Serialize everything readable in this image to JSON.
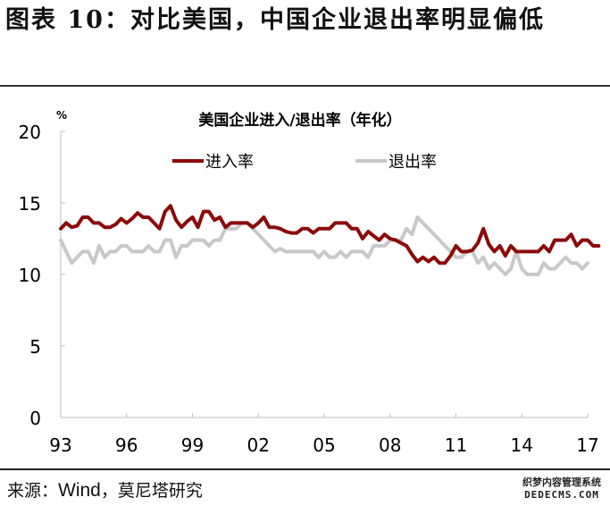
{
  "figure": {
    "title": "图表 10：对比美国，中国企业退出率明显偏低",
    "source_prefix": "来源：",
    "source_wind": "Wind",
    "source_suffix": "，莫尼塔研究"
  },
  "watermark": {
    "line1": "织梦内容管理系统",
    "line2": "DEDECMS.COM"
  },
  "chart_data": {
    "type": "line",
    "title": "美国企业进入/退出率（年化）",
    "xlabel": "",
    "ylabel": "%",
    "ylim": [
      0,
      20
    ],
    "yticks": [
      0,
      5,
      10,
      15,
      20
    ],
    "xticks": [
      "93",
      "96",
      "99",
      "02",
      "05",
      "08",
      "11",
      "14",
      "17"
    ],
    "xlim": [
      1993,
      2017
    ],
    "grid": false,
    "legend_position": "top-center",
    "frequency": "quarterly",
    "x_start": "1993Q1",
    "series": [
      {
        "name": "进入率",
        "color": "#8B0A0A",
        "values": [
          13.2,
          13.6,
          13.3,
          13.4,
          14.0,
          14.0,
          13.6,
          13.6,
          13.3,
          13.3,
          13.5,
          13.9,
          13.6,
          13.9,
          14.3,
          14.0,
          14.0,
          13.6,
          13.2,
          14.4,
          14.8,
          13.8,
          13.3,
          13.7,
          14.0,
          13.3,
          14.4,
          14.4,
          13.8,
          14.0,
          13.3,
          13.6,
          13.6,
          13.6,
          13.6,
          13.3,
          13.6,
          14.0,
          13.3,
          13.3,
          13.2,
          13.0,
          12.9,
          12.9,
          13.2,
          13.2,
          12.9,
          13.2,
          13.2,
          13.2,
          13.6,
          13.6,
          13.6,
          13.2,
          13.2,
          12.5,
          13.0,
          12.7,
          12.4,
          12.8,
          12.5,
          12.4,
          12.2,
          12.0,
          11.4,
          10.9,
          11.2,
          10.9,
          11.2,
          10.8,
          10.8,
          11.3,
          12.0,
          11.6,
          11.6,
          11.7,
          12.2,
          13.2,
          12.1,
          11.6,
          12.0,
          11.3,
          12.0,
          11.6,
          11.6,
          11.6,
          11.6,
          11.6,
          12.0,
          11.6,
          12.4,
          12.4,
          12.4,
          12.8,
          12.0,
          12.4,
          12.4,
          12.0,
          12.0
        ],
        "note": "values are estimated from pixel positions"
      },
      {
        "name": "退出率",
        "color": "#C8C8C8",
        "values": [
          12.4,
          11.6,
          10.8,
          11.2,
          11.6,
          11.6,
          10.8,
          12.0,
          11.2,
          11.6,
          11.6,
          12.0,
          12.0,
          11.6,
          11.6,
          11.6,
          12.0,
          11.6,
          11.6,
          12.4,
          12.4,
          11.2,
          12.0,
          12.0,
          12.4,
          12.4,
          12.4,
          12.0,
          12.4,
          12.4,
          13.2,
          13.2,
          13.2,
          13.6,
          13.6,
          13.2,
          12.8,
          12.4,
          12.0,
          11.6,
          11.8,
          11.6,
          11.6,
          11.6,
          11.6,
          11.6,
          11.6,
          11.2,
          11.6,
          11.2,
          11.2,
          11.6,
          11.2,
          11.6,
          11.6,
          11.6,
          11.2,
          12.0,
          12.0,
          12.0,
          12.4,
          12.4,
          12.4,
          13.2,
          12.8,
          14.0,
          13.6,
          13.2,
          12.8,
          12.4,
          12.0,
          11.6,
          11.2,
          11.2,
          11.6,
          11.6,
          10.8,
          11.2,
          10.4,
          10.8,
          10.4,
          10.0,
          10.4,
          11.6,
          10.4,
          10.0,
          10.0,
          10.0,
          10.8,
          10.4,
          10.4,
          10.8,
          11.2,
          10.8,
          10.8,
          10.4,
          10.8
        ],
        "note": "values are estimated from pixel positions"
      }
    ]
  }
}
